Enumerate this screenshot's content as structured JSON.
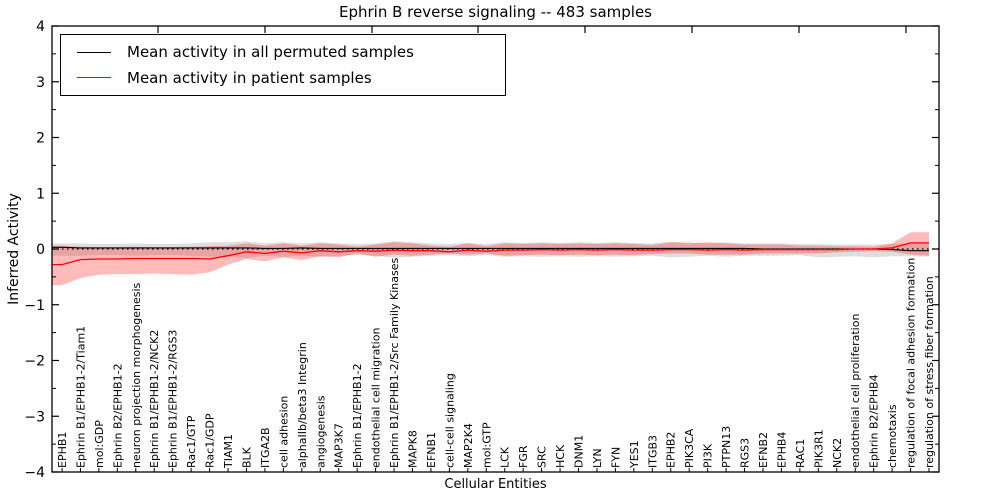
{
  "figure": {
    "title": "Ephrin B reverse signaling -- 483 samples",
    "xlabel": "Cellular Entities",
    "ylabel": "Inferred Activity"
  },
  "chart_data": {
    "type": "line",
    "title": "Ephrin B reverse signaling -- 483 samples",
    "xlabel": "Cellular Entities",
    "ylabel": "Inferred Activity",
    "ylim": [
      -4,
      4
    ],
    "yticks": [
      4,
      3,
      2,
      1,
      0,
      -1,
      -2,
      -3,
      -4
    ],
    "grid": false,
    "legend_position": "upper left",
    "sample_count": 483,
    "zero_line": 0,
    "categories": [
      "EPHB1",
      "Ephrin B1/EPHB1-2/Tiam1",
      "mol:GDP",
      "Ephrin B2/EPHB1-2",
      "neuron projection morphogenesis",
      "Ephrin B1/EPHB1-2/NCK2",
      "Ephrin B1/EPHB1-2/RGS3",
      "Rac1/GTP",
      "Rac1/GDP",
      "TIAM1",
      "BLK",
      "ITGA2B",
      "cell adhesion",
      "alphaIIb/beta3 Integrin",
      "angiogenesis",
      "MAP3K7",
      "Ephrin B1/EPHB1-2",
      "endothelial cell migration",
      "Ephrin B1/EPHB1-2/Src Family Kinases",
      "MAPK8",
      "EFNB1",
      "cell-cell signaling",
      "MAP2K4",
      "mol:GTP",
      "LCK",
      "FGR",
      "SRC",
      "HCK",
      "DNM1",
      "LYN",
      "FYN",
      "YES1",
      "ITGB3",
      "EPHB2",
      "PIK3CA",
      "PI3K",
      "PTPN13",
      "RGS3",
      "EFNB2",
      "EPHB4",
      "RAC1",
      "PIK3R1",
      "NCK2",
      "endothelial cell proliferation",
      "Ephrin B2/EPHB4",
      "chemotaxis",
      "regulation of focal adhesion formation",
      "regulation of stress fiber formation"
    ],
    "series": [
      {
        "name": "Mean activity in all permuted samples",
        "color": "#000000",
        "band_color": "rgba(0,0,0,0.13)",
        "values": [
          0.03,
          0.02,
          0.02,
          0.02,
          0.02,
          0.02,
          0.02,
          0.02,
          0.02,
          0.02,
          0.02,
          0.01,
          0.01,
          0.02,
          0.01,
          0.01,
          0.01,
          0.01,
          0.01,
          0.01,
          0.01,
          0.01,
          0.01,
          0.01,
          0.01,
          0.01,
          0.01,
          0.01,
          0.01,
          0.01,
          0.01,
          0.01,
          0.01,
          0.01,
          0.01,
          0.01,
          0.01,
          0.01,
          0.0,
          0.0,
          0.0,
          0.0,
          0.0,
          0.0,
          0.0,
          -0.01,
          -0.03,
          -0.03
        ],
        "band_upper": [
          0.1,
          0.1,
          0.09,
          0.09,
          0.1,
          0.09,
          0.09,
          0.1,
          0.12,
          0.12,
          0.14,
          0.1,
          0.12,
          0.1,
          0.12,
          0.1,
          0.09,
          0.1,
          0.14,
          0.12,
          0.1,
          0.09,
          0.11,
          0.09,
          0.12,
          0.11,
          0.12,
          0.11,
          0.12,
          0.11,
          0.12,
          0.11,
          0.1,
          0.13,
          0.12,
          0.1,
          0.12,
          0.1,
          0.1,
          0.1,
          0.09,
          0.09,
          0.08,
          0.08,
          0.08,
          0.09,
          0.1,
          0.1
        ],
        "band_lower": [
          -0.12,
          -0.12,
          -0.11,
          -0.11,
          -0.12,
          -0.11,
          -0.11,
          -0.12,
          -0.14,
          -0.14,
          -0.16,
          -0.12,
          -0.14,
          -0.12,
          -0.14,
          -0.12,
          -0.11,
          -0.12,
          -0.16,
          -0.14,
          -0.12,
          -0.11,
          -0.13,
          -0.11,
          -0.14,
          -0.13,
          -0.14,
          -0.13,
          -0.14,
          -0.13,
          -0.14,
          -0.13,
          -0.12,
          -0.15,
          -0.14,
          -0.12,
          -0.14,
          -0.12,
          -0.12,
          -0.12,
          -0.11,
          -0.15,
          -0.14,
          -0.13,
          -0.15,
          -0.13,
          -0.13,
          -0.14
        ]
      },
      {
        "name": "Mean activity in patient samples",
        "color": "#ff0000",
        "band_color": "rgba(255,0,0,0.27)",
        "values": [
          -0.28,
          -0.19,
          -0.18,
          -0.18,
          -0.17,
          -0.17,
          -0.17,
          -0.17,
          -0.18,
          -0.12,
          -0.05,
          -0.08,
          -0.04,
          -0.07,
          -0.03,
          -0.05,
          -0.03,
          -0.04,
          -0.02,
          -0.03,
          -0.03,
          -0.05,
          -0.02,
          -0.04,
          -0.02,
          -0.02,
          -0.01,
          -0.02,
          -0.01,
          -0.02,
          -0.01,
          -0.02,
          -0.02,
          -0.01,
          -0.01,
          -0.02,
          -0.01,
          -0.02,
          -0.01,
          -0.01,
          -0.01,
          -0.01,
          -0.01,
          0.0,
          0.0,
          0.02,
          0.11,
          0.11
        ],
        "band_upper": [
          0.06,
          0.04,
          0.03,
          0.03,
          0.04,
          0.03,
          0.03,
          0.04,
          0.05,
          0.06,
          0.1,
          0.06,
          0.1,
          0.06,
          0.1,
          0.08,
          0.04,
          0.08,
          0.12,
          0.1,
          0.06,
          0.04,
          0.1,
          0.05,
          0.1,
          0.09,
          0.1,
          0.09,
          0.1,
          0.09,
          0.1,
          0.09,
          0.07,
          0.12,
          0.1,
          0.12,
          0.1,
          0.08,
          0.08,
          0.08,
          0.06,
          0.06,
          0.05,
          0.05,
          0.04,
          0.1,
          0.3,
          0.3
        ],
        "band_lower": [
          -0.65,
          -0.52,
          -0.46,
          -0.45,
          -0.45,
          -0.44,
          -0.45,
          -0.46,
          -0.42,
          -0.28,
          -0.18,
          -0.22,
          -0.15,
          -0.2,
          -0.13,
          -0.15,
          -0.08,
          -0.14,
          -0.1,
          -0.12,
          -0.1,
          -0.08,
          -0.1,
          -0.08,
          -0.12,
          -0.11,
          -0.1,
          -0.11,
          -0.1,
          -0.11,
          -0.1,
          -0.11,
          -0.09,
          -0.08,
          -0.08,
          -0.1,
          -0.1,
          -0.1,
          -0.08,
          -0.08,
          -0.08,
          -0.08,
          -0.06,
          -0.05,
          -0.04,
          -0.05,
          -0.1,
          -0.12
        ]
      }
    ]
  }
}
